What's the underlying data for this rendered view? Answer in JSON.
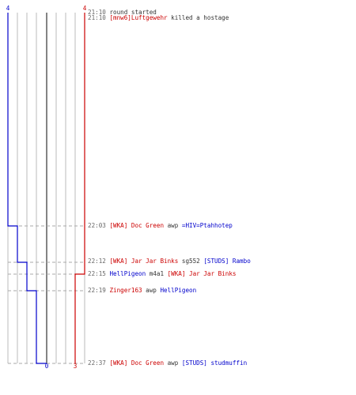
{
  "scores": {
    "blue_start": "4",
    "red_start": "4",
    "blue_end": "0",
    "red_end": "3"
  },
  "colors": {
    "blue": "#0000cc",
    "red": "#cc0000",
    "time": "#666666",
    "neutral": "#333333",
    "grid": "#bbbbbb",
    "axis": "#666666",
    "dash": "#aaaaaa"
  },
  "events": [
    {
      "time": "21:10",
      "parts": [
        {
          "text": "round started",
          "team": "neutral"
        }
      ]
    },
    {
      "time": "21:10",
      "parts": [
        {
          "text": "[mnw6]Luftgewehr",
          "team": "red"
        },
        {
          "text": " killed a hostage",
          "team": "neutral"
        }
      ]
    },
    {
      "time": "22:03",
      "parts": [
        {
          "text": "[WKA] Doc Green",
          "team": "red"
        },
        {
          "text": " awp ",
          "team": "neutral"
        },
        {
          "text": "=HIV=Ptahhotep",
          "team": "blue"
        }
      ]
    },
    {
      "time": "22:12",
      "parts": [
        {
          "text": "[WKA] Jar Jar Binks",
          "team": "red"
        },
        {
          "text": " sg552 ",
          "team": "neutral"
        },
        {
          "text": "[STUDS] Rambo",
          "team": "blue"
        }
      ]
    },
    {
      "time": "22:15",
      "parts": [
        {
          "text": "HellPigeon",
          "team": "blue"
        },
        {
          "text": " m4a1 ",
          "team": "neutral"
        },
        {
          "text": "[WKA] Jar Jar Binks",
          "team": "red"
        }
      ]
    },
    {
      "time": "22:19",
      "parts": [
        {
          "text": "Zinger163",
          "team": "red"
        },
        {
          "text": " awp ",
          "team": "neutral"
        },
        {
          "text": "HellPigeon",
          "team": "blue"
        }
      ]
    },
    {
      "time": "22:37",
      "parts": [
        {
          "text": "[WKA] Doc Green",
          "team": "red"
        },
        {
          "text": " awp ",
          "team": "neutral"
        },
        {
          "text": "[STUDS] studmuffin",
          "team": "blue"
        }
      ]
    }
  ]
}
